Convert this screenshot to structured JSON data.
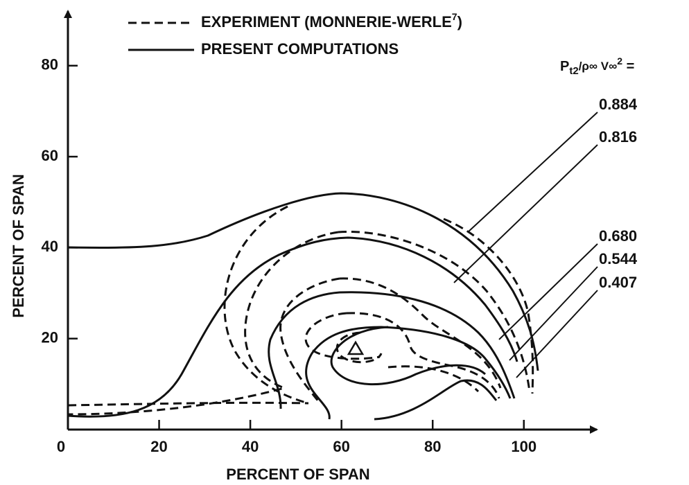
{
  "chart_data": {
    "type": "contour",
    "legend": [
      {
        "name": "EXPERIMENT (MONNERIE-WERLE",
        "sup": "7",
        "tail": ")",
        "style": "dashed"
      },
      {
        "name": "PRESENT COMPUTATIONS",
        "style": "solid"
      }
    ],
    "xlabel": "PERCENT OF SPAN",
    "ylabel": "PERCENT OF SPAN",
    "xlim": [
      0,
      116
    ],
    "ylim": [
      0,
      92
    ],
    "xticks": [
      0,
      20,
      40,
      60,
      80,
      100
    ],
    "yticks": [
      20,
      40,
      60,
      80
    ],
    "levels_title": {
      "p": "P",
      "sub": "t2",
      "mid": "/ρ∞ V∞",
      "sup": "2",
      "tail": " ="
    },
    "levels": [
      0.884,
      0.816,
      {
        "value": 0.68,
        "label": "0.680"
      },
      0.544,
      0.407
    ],
    "color": "#111111"
  }
}
